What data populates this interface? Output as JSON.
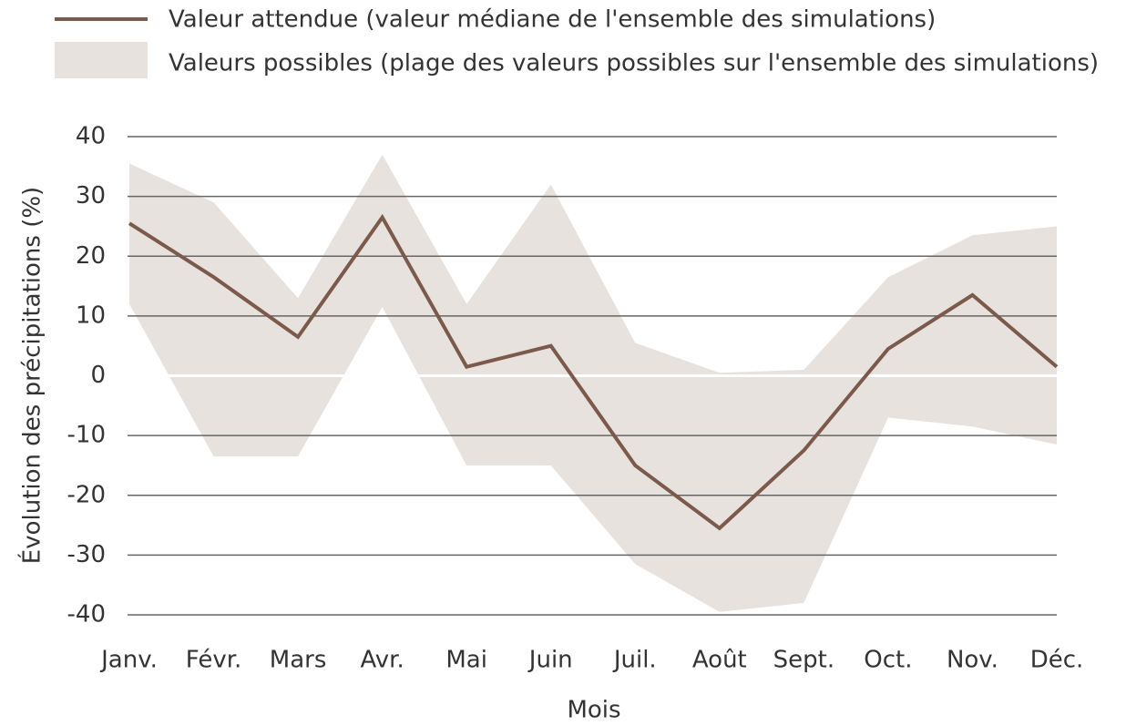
{
  "chart_data": {
    "type": "line",
    "xlabel": "Mois",
    "ylabel": "Évolution des précipitations (%)",
    "categories": [
      "Janv.",
      "Févr.",
      "Mars",
      "Avr.",
      "Mai",
      "Juin",
      "Juil.",
      "Août",
      "Sept.",
      "Oct.",
      "Nov.",
      "Déc."
    ],
    "series": [
      {
        "name": "Valeur attendue (valeur médiane de l'ensemble des simulations)",
        "color": "#7b5a4b",
        "values": [
          25.5,
          16.5,
          6.5,
          26.5,
          1.5,
          5,
          -15,
          -25.5,
          -12.5,
          4.5,
          13.5,
          1.5
        ]
      },
      {
        "name": "Valeurs possibles (plage des valeurs possibles sur l'ensemble des simulations)",
        "color": "#e8e2df",
        "upper": [
          35.5,
          29,
          13,
          37,
          12,
          32,
          5.5,
          0.5,
          1,
          16.5,
          23.5,
          25
        ],
        "lower": [
          12,
          -13.5,
          -13.5,
          11.5,
          -15,
          -15,
          -31.5,
          -39.5,
          -38,
          -7,
          -8.5,
          -11.5
        ]
      }
    ],
    "ylim": [
      -40,
      40
    ],
    "yticks": [
      -40,
      -30,
      -20,
      -10,
      0,
      10,
      20,
      30,
      40
    ],
    "grid": true
  }
}
